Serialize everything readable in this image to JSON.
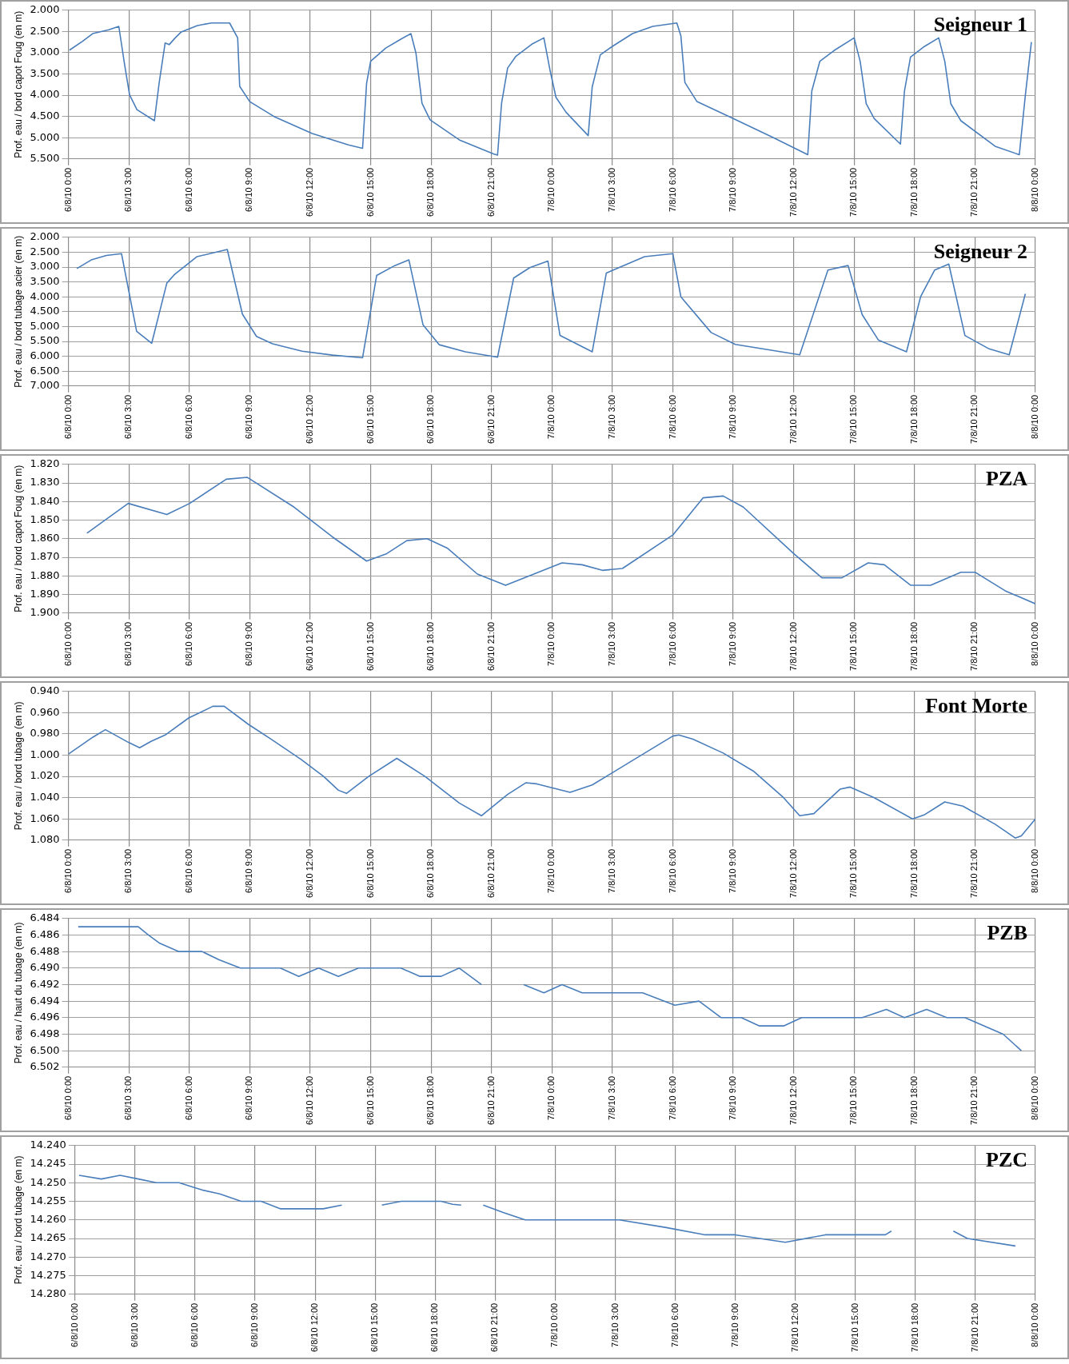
{
  "chart_data": [
    {
      "type": "line",
      "title": "Seigneur 1",
      "ylabel": "Prof. eau / bord capot Foug (en m)",
      "color": "#4a7ebb",
      "grid": true,
      "x": [
        "--08-06T00:03",
        "--08-06T00:42",
        "--08-06T01:12",
        "--08-06T02:00",
        "--08-06T02:30",
        "--08-06T02:48",
        "--08-06T03:02",
        "--08-06T03:24",
        "--08-06T04:16",
        "--08-06T04:30",
        "--08-06T04:48",
        "--08-06T05:00",
        "--08-06T05:18",
        "--08-06T05:36",
        "--08-06T06:24",
        "--08-06T07:06",
        "--08-06T08:00",
        "--08-06T08:24",
        "--08-06T08:30",
        "--08-06T09:00",
        "--08-06T10:12",
        "--08-06T12:06",
        "--08-06T13:54",
        "--08-06T14:36",
        "--08-06T14:48",
        "--08-06T15:00",
        "--08-06T15:45",
        "--08-06T16:30",
        "--08-06T17:00",
        "--08-06T17:15",
        "--08-06T17:33",
        "--08-06T17:57",
        "--08-06T19:24",
        "--08-06T21:06",
        "--08-06T21:18",
        "--08-06T21:30",
        "--08-06T21:48",
        "--08-06T22:12",
        "--08-06T23:00",
        "--08-06T23:36",
        "--08-06T23:54",
        "--08-07T00:12",
        "--08-07T00:42",
        "--08-07T01:48",
        "--08-07T02:00",
        "--08-07T02:24",
        "--08-07T03:00",
        "--08-07T04:00",
        "--08-07T05:00",
        "--08-07T06:12",
        "--08-07T06:24",
        "--08-07T06:36",
        "--08-07T07:12",
        "--08-07T09:00",
        "--08-07T11:00",
        "--08-07T12:42",
        "--08-07T12:54",
        "--08-07T13:18",
        "--08-07T14:00",
        "--08-07T15:00",
        "--08-07T15:18",
        "--08-07T15:36",
        "--08-07T16:00",
        "--08-07T17:18",
        "--08-07T17:30",
        "--08-07T17:48",
        "--08-07T18:30",
        "--08-07T19:12",
        "--08-07T19:30",
        "--08-07T19:48",
        "--08-07T20:18",
        "--08-07T22:00",
        "--08-07T23:12",
        "--08-07T23:30",
        "--08-07T23:48"
      ],
      "values": [
        2.94,
        2.73,
        2.55,
        2.46,
        2.38,
        3.32,
        3.99,
        4.34,
        4.6,
        3.72,
        2.77,
        2.81,
        2.65,
        2.51,
        2.36,
        2.3,
        2.3,
        2.65,
        3.79,
        4.15,
        4.5,
        4.9,
        5.17,
        5.25,
        3.72,
        3.2,
        2.89,
        2.68,
        2.55,
        3.01,
        4.19,
        4.58,
        5.05,
        5.38,
        5.41,
        4.19,
        3.36,
        3.09,
        2.8,
        2.65,
        3.4,
        4.05,
        4.4,
        4.95,
        3.8,
        3.05,
        2.85,
        2.55,
        2.38,
        2.3,
        2.6,
        3.7,
        4.15,
        4.55,
        5.0,
        5.4,
        3.9,
        3.2,
        2.95,
        2.65,
        3.2,
        4.2,
        4.55,
        5.15,
        3.9,
        3.1,
        2.85,
        2.65,
        3.2,
        4.2,
        4.6,
        5.2,
        5.4,
        4.0,
        2.75
      ],
      "xlim": [
        "--08-06T00:00",
        "--08-08T00:00"
      ],
      "xticks": [
        {
          "value": "--08-06T00:00",
          "label": "6/8/10 0:00"
        },
        {
          "value": "--08-06T03:00",
          "label": "6/8/10 3:00"
        },
        {
          "value": "--08-06T06:00",
          "label": "6/8/10 6:00"
        },
        {
          "value": "--08-06T09:00",
          "label": "6/8/10 9:00"
        },
        {
          "value": "--08-06T12:00",
          "label": "6/8/10 12:00"
        },
        {
          "value": "--08-06T15:00",
          "label": "6/8/10 15:00"
        },
        {
          "value": "--08-06T18:00",
          "label": "6/8/10 18:00"
        },
        {
          "value": "--08-06T21:00",
          "label": "6/8/10 21:00"
        },
        {
          "value": "--08-07T00:00",
          "label": "7/8/10 0:00"
        },
        {
          "value": "--08-07T03:00",
          "label": "7/8/10 3:00"
        },
        {
          "value": "--08-07T06:00",
          "label": "7/8/10 6:00"
        },
        {
          "value": "--08-07T09:00",
          "label": "7/8/10 9:00"
        },
        {
          "value": "--08-07T12:00",
          "label": "7/8/10 12:00"
        },
        {
          "value": "--08-07T15:00",
          "label": "7/8/10 15:00"
        },
        {
          "value": "--08-07T18:00",
          "label": "7/8/10 18:00"
        },
        {
          "value": "--08-07T21:00",
          "label": "7/8/10 21:00"
        },
        {
          "value": "--08-08T00:00",
          "label": "8/8/10 0:00"
        }
      ],
      "ylim": [
        5.5,
        2.0
      ],
      "yticks": [
        {
          "value": 2,
          "label": "2.000"
        },
        {
          "value": 2.5,
          "label": "2.500"
        },
        {
          "value": 3,
          "label": "3.000"
        },
        {
          "value": 3.5,
          "label": "3.500"
        },
        {
          "value": 4,
          "label": "4.000"
        },
        {
          "value": 4.5,
          "label": "4.500"
        },
        {
          "value": 5,
          "label": "5.000"
        },
        {
          "value": 5.5,
          "label": "5.500"
        }
      ]
    },
    {
      "type": "line",
      "title": "Seigneur 2",
      "ylabel": "Prof. eau / bord tubage acier (en m)",
      "color": "#4a7ebb",
      "grid": true,
      "x": [
        "--08-06T00:25",
        "--08-06T01:08",
        "--08-06T01:53",
        "--08-06T02:38",
        "--08-06T03:23",
        "--08-06T04:08",
        "--08-06T04:53",
        "--08-06T05:15",
        "--08-06T06:23",
        "--08-06T07:53",
        "--08-06T08:38",
        "--08-06T09:20",
        "--08-06T10:08",
        "--08-06T11:36",
        "--08-06T13:06",
        "--08-06T14:36",
        "--08-06T15:18",
        "--08-06T16:12",
        "--08-06T16:54",
        "--08-06T17:36",
        "--08-06T18:24",
        "--08-06T19:42",
        "--08-06T21:18",
        "--08-06T22:06",
        "--08-06T22:54",
        "--08-06T23:48",
        "--08-07T00:24",
        "--08-07T02:00",
        "--08-07T02:42",
        "--08-07T04:36",
        "--08-07T06:00",
        "--08-07T06:24",
        "--08-07T07:54",
        "--08-07T09:06",
        "--08-07T12:18",
        "--08-07T13:42",
        "--08-07T14:42",
        "--08-07T15:24",
        "--08-07T16:12",
        "--08-07T17:36",
        "--08-07T18:18",
        "--08-07T19:00",
        "--08-07T19:42",
        "--08-07T20:30",
        "--08-07T21:42",
        "--08-07T22:42",
        "--08-07T23:30"
      ],
      "values": [
        3.05,
        2.76,
        2.61,
        2.55,
        5.16,
        5.56,
        3.54,
        3.26,
        2.65,
        2.41,
        4.58,
        5.33,
        5.58,
        5.83,
        5.96,
        6.05,
        3.28,
        2.95,
        2.76,
        4.94,
        5.61,
        5.85,
        6.03,
        3.37,
        3.02,
        2.8,
        5.3,
        5.85,
        3.2,
        2.65,
        2.55,
        4.0,
        5.2,
        5.6,
        5.95,
        3.1,
        2.95,
        4.6,
        5.45,
        5.85,
        4.0,
        3.1,
        2.9,
        5.3,
        5.75,
        5.95,
        3.9
      ],
      "xlim": [
        "--08-06T00:00",
        "--08-08T00:00"
      ],
      "xticks": [
        {
          "value": "--08-06T00:00",
          "label": "6/8/10 0:00"
        },
        {
          "value": "--08-06T03:00",
          "label": "6/8/10 3:00"
        },
        {
          "value": "--08-06T06:00",
          "label": "6/8/10 6:00"
        },
        {
          "value": "--08-06T09:00",
          "label": "6/8/10 9:00"
        },
        {
          "value": "--08-06T12:00",
          "label": "6/8/10 12:00"
        },
        {
          "value": "--08-06T15:00",
          "label": "6/8/10 15:00"
        },
        {
          "value": "--08-06T18:00",
          "label": "6/8/10 18:00"
        },
        {
          "value": "--08-06T21:00",
          "label": "6/8/10 21:00"
        },
        {
          "value": "--08-07T00:00",
          "label": "7/8/10 0:00"
        },
        {
          "value": "--08-07T03:00",
          "label": "7/8/10 3:00"
        },
        {
          "value": "--08-07T06:00",
          "label": "7/8/10 6:00"
        },
        {
          "value": "--08-07T09:00",
          "label": "7/8/10 9:00"
        },
        {
          "value": "--08-07T12:00",
          "label": "7/8/10 12:00"
        },
        {
          "value": "--08-07T15:00",
          "label": "7/8/10 15:00"
        },
        {
          "value": "--08-07T18:00",
          "label": "7/8/10 18:00"
        },
        {
          "value": "--08-07T21:00",
          "label": "7/8/10 21:00"
        },
        {
          "value": "--08-08T00:00",
          "label": "8/8/10 0:00"
        }
      ],
      "ylim": [
        7.0,
        2.0
      ],
      "yticks": [
        {
          "value": 2,
          "label": "2.000"
        },
        {
          "value": 2.5,
          "label": "2.500"
        },
        {
          "value": 3,
          "label": "3.000"
        },
        {
          "value": 3.5,
          "label": "3.500"
        },
        {
          "value": 4,
          "label": "4.000"
        },
        {
          "value": 4.5,
          "label": "4.500"
        },
        {
          "value": 5,
          "label": "5.000"
        },
        {
          "value": 5.5,
          "label": "5.500"
        },
        {
          "value": 6,
          "label": "6.000"
        },
        {
          "value": 6.5,
          "label": "6.500"
        },
        {
          "value": 7,
          "label": "7.000"
        }
      ]
    },
    {
      "type": "line",
      "title": "PZA",
      "ylabel": "Prof. eau / bord capot Foug (en m)",
      "color": "#4a7ebb",
      "grid": true,
      "x": [
        "--08-06T00:55",
        "--08-06T02:58",
        "--08-06T04:53",
        "--08-06T06:01",
        "--08-06T07:50",
        "--08-06T08:53",
        "--08-06T11:12",
        "--08-06T13:06",
        "--08-06T14:48",
        "--08-06T15:48",
        "--08-06T16:48",
        "--08-06T17:48",
        "--08-06T18:48",
        "--08-06T20:18",
        "--08-06T21:42",
        "--08-07T00:30",
        "--08-07T01:30",
        "--08-07T02:30",
        "--08-07T03:30",
        "--08-07T06:00",
        "--08-07T07:30",
        "--08-07T08:30",
        "--08-07T09:30",
        "--08-07T12:00",
        "--08-07T13:24",
        "--08-07T14:24",
        "--08-07T15:42",
        "--08-07T16:30",
        "--08-07T17:48",
        "--08-07T18:48",
        "--08-07T20:18",
        "--08-07T21:00",
        "--08-07T22:30",
        "--08-08T00:00"
      ],
      "values": [
        1.857,
        1.841,
        1.847,
        1.841,
        1.828,
        1.827,
        1.843,
        1.859,
        1.872,
        1.868,
        1.861,
        1.86,
        1.865,
        1.879,
        1.885,
        1.873,
        1.874,
        1.877,
        1.876,
        1.858,
        1.838,
        1.837,
        1.843,
        1.868,
        1.881,
        1.881,
        1.873,
        1.874,
        1.885,
        1.885,
        1.878,
        1.878,
        1.888,
        1.895
      ],
      "xlim": [
        "--08-06T00:00",
        "--08-08T00:00"
      ],
      "xticks": [
        {
          "value": "--08-06T00:00",
          "label": "6/8/10 0:00"
        },
        {
          "value": "--08-06T03:00",
          "label": "6/8/10 3:00"
        },
        {
          "value": "--08-06T06:00",
          "label": "6/8/10 6:00"
        },
        {
          "value": "--08-06T09:00",
          "label": "6/8/10 9:00"
        },
        {
          "value": "--08-06T12:00",
          "label": "6/8/10 12:00"
        },
        {
          "value": "--08-06T15:00",
          "label": "6/8/10 15:00"
        },
        {
          "value": "--08-06T18:00",
          "label": "6/8/10 18:00"
        },
        {
          "value": "--08-06T21:00",
          "label": "6/8/10 21:00"
        },
        {
          "value": "--08-07T00:00",
          "label": "7/8/10 0:00"
        },
        {
          "value": "--08-07T03:00",
          "label": "7/8/10 3:00"
        },
        {
          "value": "--08-07T06:00",
          "label": "7/8/10 6:00"
        },
        {
          "value": "--08-07T09:00",
          "label": "7/8/10 9:00"
        },
        {
          "value": "--08-07T12:00",
          "label": "7/8/10 12:00"
        },
        {
          "value": "--08-07T15:00",
          "label": "7/8/10 15:00"
        },
        {
          "value": "--08-07T18:00",
          "label": "7/8/10 18:00"
        },
        {
          "value": "--08-07T21:00",
          "label": "7/8/10 21:00"
        },
        {
          "value": "--08-08T00:00",
          "label": "8/8/10 0:00"
        }
      ],
      "ylim": [
        1.9,
        1.82
      ],
      "yticks": [
        {
          "value": 1.82,
          "label": "1.820"
        },
        {
          "value": 1.83,
          "label": "1.830"
        },
        {
          "value": 1.84,
          "label": "1.840"
        },
        {
          "value": 1.85,
          "label": "1.850"
        },
        {
          "value": 1.86,
          "label": "1.860"
        },
        {
          "value": 1.87,
          "label": "1.870"
        },
        {
          "value": 1.88,
          "label": "1.880"
        },
        {
          "value": 1.89,
          "label": "1.890"
        },
        {
          "value": 1.9,
          "label": "1.900"
        }
      ]
    },
    {
      "type": "line",
      "title": "Font Morte",
      "ylabel": "Prof. eau / bord tubage (en m)",
      "color": "#4a7ebb",
      "grid": true,
      "x": [
        "--08-06T00:00",
        "--08-06T01:13",
        "--08-06T01:50",
        "--08-06T02:59",
        "--08-06T03:32",
        "--08-06T04:06",
        "--08-06T04:48",
        "--08-06T05:58",
        "--08-06T07:10",
        "--08-06T07:44",
        "--08-06T08:56",
        "--08-06T10:04",
        "--08-06T11:33",
        "--08-06T12:40",
        "--08-06T13:24",
        "--08-06T13:48",
        "--08-06T14:54",
        "--08-06T16:18",
        "--08-06T17:42",
        "--08-06T19:24",
        "--08-06T20:30",
        "--08-06T21:48",
        "--08-06T22:42",
        "--08-06T23:15",
        "--08-07T00:54",
        "--08-07T02:00",
        "--08-07T04:00",
        "--08-07T06:00",
        "--08-07T06:18",
        "--08-07T07:00",
        "--08-07T08:30",
        "--08-07T10:00",
        "--08-07T11:30",
        "--08-07T12:18",
        "--08-07T13:00",
        "--08-07T14:18",
        "--08-07T14:48",
        "--08-07T16:00",
        "--08-07T17:54",
        "--08-07T18:30",
        "--08-07T19:30",
        "--08-07T20:24",
        "--08-07T22:00",
        "--08-07T23:00",
        "--08-07T23:18",
        "--08-08T00:00"
      ],
      "values": [
        0.999,
        0.983,
        0.976,
        0.988,
        0.993,
        0.987,
        0.981,
        0.965,
        0.954,
        0.954,
        0.971,
        0.985,
        1.004,
        1.02,
        1.033,
        1.036,
        1.02,
        1.003,
        1.02,
        1.045,
        1.057,
        1.037,
        1.026,
        1.027,
        1.035,
        1.028,
        1.005,
        0.982,
        0.981,
        0.985,
        0.998,
        1.015,
        1.04,
        1.057,
        1.055,
        1.032,
        1.03,
        1.04,
        1.06,
        1.056,
        1.044,
        1.048,
        1.065,
        1.078,
        1.076,
        1.06
      ],
      "xlim": [
        "--08-06T00:00",
        "--08-08T00:00"
      ],
      "xticks": [
        {
          "value": "--08-06T00:00",
          "label": "6/8/10 0:00"
        },
        {
          "value": "--08-06T03:00",
          "label": "6/8/10 3:00"
        },
        {
          "value": "--08-06T06:00",
          "label": "6/8/10 6:00"
        },
        {
          "value": "--08-06T09:00",
          "label": "6/8/10 9:00"
        },
        {
          "value": "--08-06T12:00",
          "label": "6/8/10 12:00"
        },
        {
          "value": "--08-06T15:00",
          "label": "6/8/10 15:00"
        },
        {
          "value": "--08-06T18:00",
          "label": "6/8/10 18:00"
        },
        {
          "value": "--08-06T21:00",
          "label": "6/8/10 21:00"
        },
        {
          "value": "--08-07T00:00",
          "label": "7/8/10 0:00"
        },
        {
          "value": "--08-07T03:00",
          "label": "7/8/10 3:00"
        },
        {
          "value": "--08-07T06:00",
          "label": "7/8/10 6:00"
        },
        {
          "value": "--08-07T09:00",
          "label": "7/8/10 9:00"
        },
        {
          "value": "--08-07T12:00",
          "label": "7/8/10 12:00"
        },
        {
          "value": "--08-07T15:00",
          "label": "7/8/10 15:00"
        },
        {
          "value": "--08-07T18:00",
          "label": "7/8/10 18:00"
        },
        {
          "value": "--08-07T21:00",
          "label": "7/8/10 21:00"
        },
        {
          "value": "--08-08T00:00",
          "label": "8/8/10 0:00"
        }
      ],
      "ylim": [
        1.08,
        0.94
      ],
      "yticks": [
        {
          "value": 0.94,
          "label": "0.940"
        },
        {
          "value": 0.96,
          "label": "0.960"
        },
        {
          "value": 0.98,
          "label": "0.980"
        },
        {
          "value": 1.0,
          "label": "1.000"
        },
        {
          "value": 1.02,
          "label": "1.020"
        },
        {
          "value": 1.04,
          "label": "1.040"
        },
        {
          "value": 1.06,
          "label": "1.060"
        },
        {
          "value": 1.08,
          "label": "1.080"
        }
      ]
    },
    {
      "type": "line",
      "title": "PZB",
      "ylabel": "Prof. eau / haut du tubage (en m)",
      "color": "#4a7ebb",
      "grid": true,
      "x": [
        "--08-06T00:29",
        "--08-06T03:28",
        "--08-06T03:58",
        "--08-06T04:32",
        "--08-06T05:29",
        "--08-06T06:38",
        "--08-06T07:29",
        "--08-06T08:32",
        "--08-06T10:31",
        "--08-06T11:26",
        "--08-06T12:25",
        "--08-06T13:24",
        "--08-06T14:24",
        "--08-06T16:30",
        "--08-06T17:27",
        "--08-06T18:30",
        "--08-06T19:24",
        "--08-06T20:30",
        "--08-06T21:30",
        "--08-06T22:36",
        "--08-06T23:36",
        "--08-07T00:30",
        "--08-07T01:30",
        "--08-07T04:30",
        "--08-07T06:06",
        "--08-07T07:18",
        "--08-07T08:24",
        "--08-07T09:24",
        "--08-07T10:18",
        "--08-07T11:30",
        "--08-07T12:24",
        "--08-07T15:24",
        "--08-07T16:36",
        "--08-07T17:30",
        "--08-07T18:36",
        "--08-07T19:36",
        "--08-07T20:30",
        "--08-07T22:24",
        "--08-07T23:18"
      ],
      "values": [
        6.485,
        6.485,
        6.486,
        6.487,
        6.488,
        6.488,
        6.489,
        6.49,
        6.49,
        6.491,
        6.49,
        6.491,
        6.49,
        6.49,
        6.491,
        6.491,
        6.49,
        6.492,
        null,
        6.492,
        6.493,
        6.492,
        6.493,
        6.493,
        6.4945,
        6.494,
        6.496,
        6.496,
        6.497,
        6.497,
        6.496,
        6.496,
        6.495,
        6.496,
        6.495,
        6.496,
        6.496,
        6.498,
        6.5
      ],
      "xlim": [
        "--08-06T00:00",
        "--08-08T00:00"
      ],
      "xticks": [
        {
          "value": "--08-06T00:00",
          "label": "6/8/10 0:00"
        },
        {
          "value": "--08-06T03:00",
          "label": "6/8/10 3:00"
        },
        {
          "value": "--08-06T06:00",
          "label": "6/8/10 6:00"
        },
        {
          "value": "--08-06T09:00",
          "label": "6/8/10 9:00"
        },
        {
          "value": "--08-06T12:00",
          "label": "6/8/10 12:00"
        },
        {
          "value": "--08-06T15:00",
          "label": "6/8/10 15:00"
        },
        {
          "value": "--08-06T18:00",
          "label": "6/8/10 18:00"
        },
        {
          "value": "--08-06T21:00",
          "label": "6/8/10 21:00"
        },
        {
          "value": "--08-07T00:00",
          "label": "7/8/10 0:00"
        },
        {
          "value": "--08-07T03:00",
          "label": "7/8/10 3:00"
        },
        {
          "value": "--08-07T06:00",
          "label": "7/8/10 6:00"
        },
        {
          "value": "--08-07T09:00",
          "label": "7/8/10 9:00"
        },
        {
          "value": "--08-07T12:00",
          "label": "7/8/10 12:00"
        },
        {
          "value": "--08-07T15:00",
          "label": "7/8/10 15:00"
        },
        {
          "value": "--08-07T18:00",
          "label": "7/8/10 18:00"
        },
        {
          "value": "--08-07T21:00",
          "label": "7/8/10 21:00"
        },
        {
          "value": "--08-08T00:00",
          "label": "8/8/10 0:00"
        }
      ],
      "ylim": [
        6.502,
        6.484
      ],
      "yticks": [
        {
          "value": 6.484,
          "label": "6.484"
        },
        {
          "value": 6.486,
          "label": "6.486"
        },
        {
          "value": 6.488,
          "label": "6.488"
        },
        {
          "value": 6.49,
          "label": "6.490"
        },
        {
          "value": 6.492,
          "label": "6.492"
        },
        {
          "value": 6.494,
          "label": "6.494"
        },
        {
          "value": 6.496,
          "label": "6.496"
        },
        {
          "value": 6.498,
          "label": "6.498"
        },
        {
          "value": 6.5,
          "label": "6.500"
        },
        {
          "value": 6.502,
          "label": "6.502"
        }
      ]
    },
    {
      "type": "line",
      "title": "PZC",
      "ylabel": "Prof. eau / bord tubage (en m)",
      "color": "#4a7ebb",
      "grid": true,
      "x": [
        "--08-06T00:12",
        "--08-06T01:19",
        "--08-06T02:15",
        "--08-06T03:10",
        "--08-06T04:04",
        "--08-06T05:12",
        "--08-06T06:05",
        "--08-06T06:23",
        "--08-06T07:14",
        "--08-06T08:18",
        "--08-06T09:18",
        "--08-06T10:15",
        "--08-06T12:24",
        "--08-06T13:20",
        "--08-06T14:18",
        "--08-06T15:20",
        "--08-06T16:18",
        "--08-06T18:18",
        "--08-06T18:52",
        "--08-06T19:18",
        "--08-06T19:54",
        "--08-06T20:24",
        "--08-06T21:24",
        "--08-06T22:30",
        "--08-07T03:12",
        "--08-07T05:30",
        "--08-07T07:30",
        "--08-07T09:00",
        "--08-07T11:30",
        "--08-07T13:30",
        "--08-07T16:30",
        "--08-07T16:48",
        "--08-07T18:24",
        "--08-07T19:54",
        "--08-07T20:36",
        "--08-07T23:00"
      ],
      "values": [
        14.248,
        14.249,
        14.248,
        14.249,
        14.25,
        14.25,
        14.2515,
        14.252,
        14.253,
        14.255,
        14.255,
        14.257,
        14.257,
        14.256,
        null,
        14.256,
        14.255,
        14.255,
        14.2558,
        14.256,
        null,
        14.256,
        14.258,
        14.26,
        14.26,
        14.262,
        14.264,
        14.264,
        14.266,
        14.264,
        14.264,
        14.263,
        null,
        14.263,
        14.265,
        14.267
      ],
      "xlim": [
        "--08-06T00:00",
        "--08-08T00:00"
      ],
      "xticks": [
        {
          "value": "--08-06T00:00",
          "label": "6/8/10 0:00"
        },
        {
          "value": "--08-06T03:00",
          "label": "6/8/10 3:00"
        },
        {
          "value": "--08-06T06:00",
          "label": "6/8/10 6:00"
        },
        {
          "value": "--08-06T09:00",
          "label": "6/8/10 9:00"
        },
        {
          "value": "--08-06T12:00",
          "label": "6/8/10 12:00"
        },
        {
          "value": "--08-06T15:00",
          "label": "6/8/10 15:00"
        },
        {
          "value": "--08-06T18:00",
          "label": "6/8/10 18:00"
        },
        {
          "value": "--08-06T21:00",
          "label": "6/8/10 21:00"
        },
        {
          "value": "--08-07T00:00",
          "label": "7/8/10 0:00"
        },
        {
          "value": "--08-07T03:00",
          "label": "7/8/10 3:00"
        },
        {
          "value": "--08-07T06:00",
          "label": "7/8/10 6:00"
        },
        {
          "value": "--08-07T09:00",
          "label": "7/8/10 9:00"
        },
        {
          "value": "--08-07T12:00",
          "label": "7/8/10 12:00"
        },
        {
          "value": "--08-07T15:00",
          "label": "7/8/10 15:00"
        },
        {
          "value": "--08-07T18:00",
          "label": "7/8/10 18:00"
        },
        {
          "value": "--08-07T21:00",
          "label": "7/8/10 21:00"
        },
        {
          "value": "--08-08T00:00",
          "label": "8/8/10 0:00"
        }
      ],
      "ylim": [
        14.28,
        14.24
      ],
      "yticks": [
        {
          "value": 14.24,
          "label": "14.240"
        },
        {
          "value": 14.245,
          "label": "14.245"
        },
        {
          "value": 14.25,
          "label": "14.250"
        },
        {
          "value": 14.255,
          "label": "14.255"
        },
        {
          "value": 14.26,
          "label": "14.260"
        },
        {
          "value": 14.265,
          "label": "14.265"
        },
        {
          "value": 14.27,
          "label": "14.270"
        },
        {
          "value": 14.275,
          "label": "14.275"
        },
        {
          "value": 14.28,
          "label": "14.280"
        }
      ]
    }
  ]
}
